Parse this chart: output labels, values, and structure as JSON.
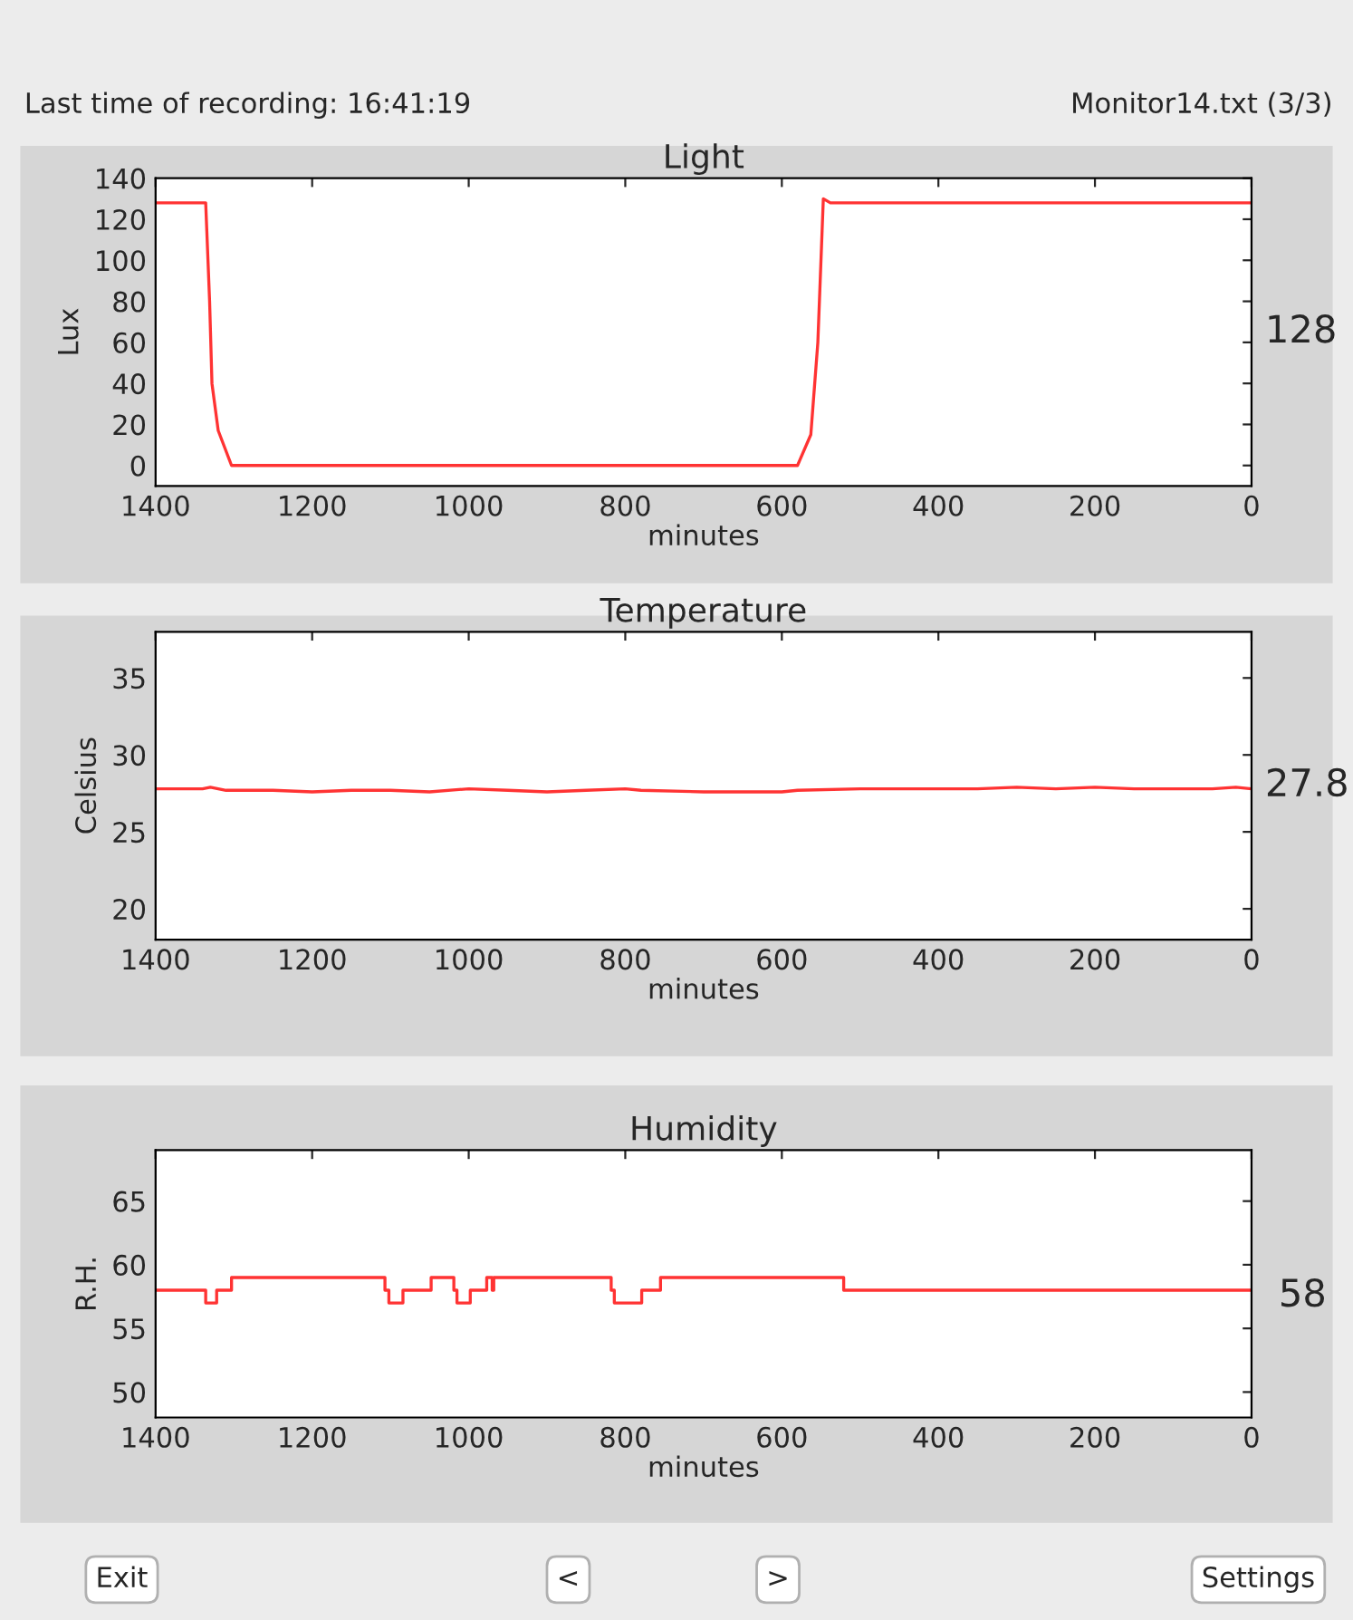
{
  "chart_data": [
    {
      "type": "line",
      "title": "Light",
      "xlabel": "minutes",
      "ylabel": "Lux",
      "x": [
        1400,
        1336,
        1331,
        1328,
        1320,
        1303,
        580,
        563,
        554,
        547,
        538,
        0
      ],
      "series": [
        {
          "color": "#ff3333",
          "values": [
            128,
            128,
            80,
            40,
            17,
            0,
            0,
            15,
            60,
            130,
            128,
            128
          ]
        }
      ],
      "xlim": [
        1400,
        0
      ],
      "xticks": [
        1400,
        1200,
        1000,
        800,
        600,
        400,
        200,
        0
      ],
      "ylim": [
        -10,
        140
      ],
      "yticks": [
        0,
        20,
        40,
        60,
        80,
        100,
        120,
        140
      ],
      "grid": false,
      "annotations": [
        "Last time of recording: 16:41:19",
        "Monitor14.txt (3/3)",
        "128"
      ]
    },
    {
      "type": "line",
      "title": "Temperature",
      "xlabel": "minutes",
      "ylabel": "Celsius",
      "x": [
        1400,
        1340,
        1330,
        1310,
        1250,
        1200,
        1150,
        1100,
        1050,
        1000,
        950,
        900,
        850,
        800,
        780,
        700,
        600,
        580,
        500,
        400,
        350,
        300,
        250,
        200,
        150,
        100,
        50,
        20,
        0
      ],
      "series": [
        {
          "color": "#ff3333",
          "values": [
            27.8,
            27.8,
            27.9,
            27.7,
            27.7,
            27.6,
            27.7,
            27.7,
            27.6,
            27.8,
            27.7,
            27.6,
            27.7,
            27.8,
            27.7,
            27.6,
            27.6,
            27.7,
            27.8,
            27.8,
            27.8,
            27.9,
            27.8,
            27.9,
            27.8,
            27.8,
            27.8,
            27.9,
            27.8
          ]
        }
      ],
      "xlim": [
        1400,
        0
      ],
      "xticks": [
        1400,
        1200,
        1000,
        800,
        600,
        400,
        200,
        0
      ],
      "ylim": [
        18,
        38
      ],
      "yticks": [
        20,
        25,
        30,
        35
      ],
      "grid": false,
      "annotations": [
        "27.8"
      ]
    },
    {
      "type": "step",
      "title": "Humidity",
      "xlabel": "minutes",
      "ylabel": "R.H.",
      "x": [
        1400,
        1336,
        1322,
        1303,
        1107,
        1102,
        1084,
        1048,
        1019,
        1015,
        998,
        977,
        970,
        968,
        818,
        814,
        779,
        755,
        521,
        0
      ],
      "series": [
        {
          "color": "#ff3333",
          "values": [
            58,
            57,
            58,
            59,
            58,
            57,
            58,
            59,
            58,
            57,
            58,
            59,
            58,
            59,
            58,
            57,
            58,
            59,
            58,
            58
          ]
        }
      ],
      "xlim": [
        1400,
        0
      ],
      "xticks": [
        1400,
        1200,
        1000,
        800,
        600,
        400,
        200,
        0
      ],
      "ylim": [
        48,
        69
      ],
      "yticks": [
        50,
        55,
        60,
        65
      ],
      "grid": false,
      "annotations": [
        "58",
        "Exit",
        "<",
        ">",
        "Settings"
      ]
    }
  ]
}
